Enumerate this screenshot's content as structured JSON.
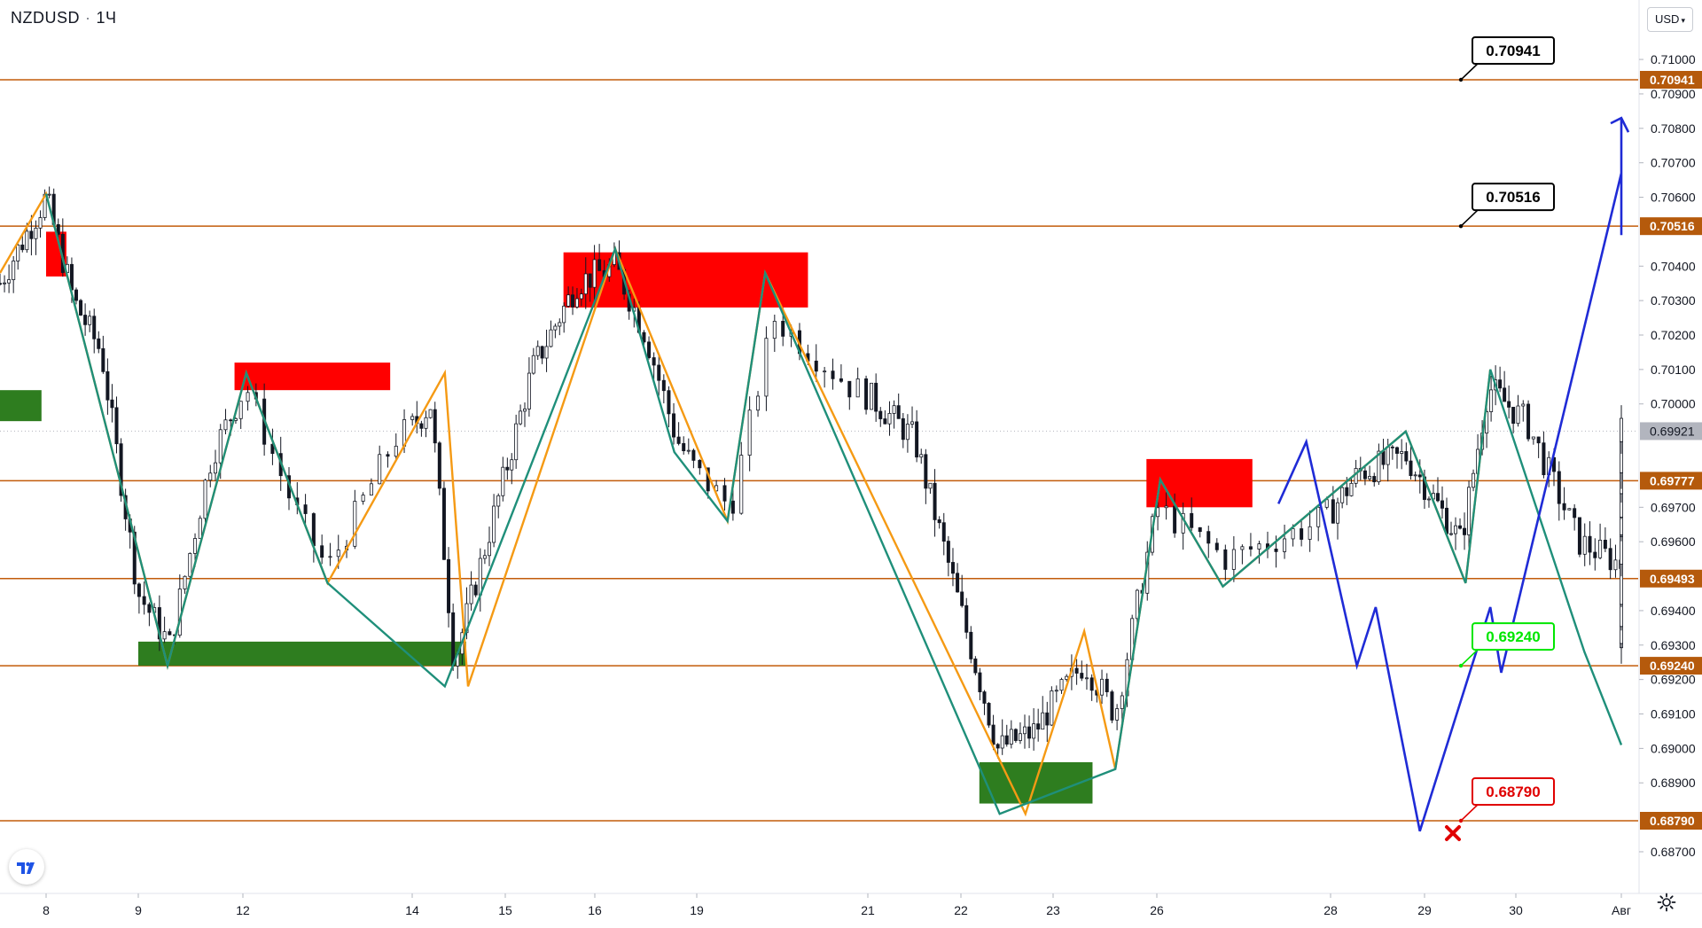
{
  "header": {
    "symbol": "NZDUSD",
    "interval": "1Ч"
  },
  "currency": {
    "label": "USD"
  },
  "chart_data": {
    "type": "candlestick",
    "symbol": "NZDUSD",
    "y_ticks": [
      "0.71000",
      "0.70900",
      "0.70800",
      "0.70700",
      "0.70600",
      "0.70400",
      "0.70300",
      "0.70200",
      "0.70100",
      "0.70000",
      "0.69700",
      "0.69600",
      "0.69400",
      "0.69300",
      "0.69200",
      "0.69100",
      "0.69000",
      "0.68900",
      "0.68700"
    ],
    "y_tick_values": [
      0.71,
      0.709,
      0.708,
      0.707,
      0.706,
      0.704,
      0.703,
      0.702,
      0.701,
      0.7,
      0.697,
      0.696,
      0.694,
      0.693,
      0.692,
      0.691,
      0.69,
      0.689,
      0.687
    ],
    "x_ticks": [
      "8",
      "9",
      "12",
      "14",
      "15",
      "16",
      "19",
      "21",
      "22",
      "23",
      "26",
      "28",
      "29",
      "30",
      "Авг"
    ],
    "current_price": "0.69921",
    "current_price_value": 0.69921,
    "levels": [
      {
        "label": "0.70941",
        "value": 0.70941
      },
      {
        "label": "0.70516",
        "value": 0.70516
      },
      {
        "label": "0.69777",
        "value": 0.69777
      },
      {
        "label": "0.69493",
        "value": 0.69493
      },
      {
        "label": "0.69240",
        "value": 0.6924
      },
      {
        "label": "0.68790",
        "value": 0.6879
      }
    ],
    "callouts": [
      {
        "label": "0.70941",
        "value": 0.70941,
        "color": "#000000"
      },
      {
        "label": "0.70516",
        "value": 0.70516,
        "color": "#000000"
      },
      {
        "label": "0.69240",
        "value": 0.6924,
        "color": "#00e600"
      },
      {
        "label": "0.68790",
        "value": 0.6879,
        "color": "#e00000"
      }
    ],
    "zones": [
      {
        "type": "supply",
        "x_from": 0.0,
        "x_to": 0.22,
        "y_from": 0.7037,
        "y_to": 0.705
      },
      {
        "type": "demand",
        "x_from": -0.5,
        "x_to": -0.05,
        "y_from": 0.6995,
        "y_to": 0.7004
      },
      {
        "type": "supply",
        "x_from": 1.92,
        "x_to": 2.87,
        "y_from": 0.7004,
        "y_to": 0.7012
      },
      {
        "type": "demand",
        "x_from": 1.0,
        "x_to": 3.58,
        "y_from": 0.6924,
        "y_to": 0.6931
      },
      {
        "type": "supply",
        "x_from": 4.65,
        "x_to": 6.65,
        "y_from": 0.7028,
        "y_to": 0.7044
      },
      {
        "type": "demand",
        "x_from": 8.2,
        "x_to": 9.38,
        "y_from": 0.6884,
        "y_to": 0.6896
      },
      {
        "type": "supply",
        "x_from": 9.9,
        "x_to": 10.55,
        "y_from": 0.697,
        "y_to": 0.6984
      }
    ],
    "zigzag_teal": [
      [
        0,
        0.7061
      ],
      [
        1.28,
        0.6924
      ],
      [
        2.02,
        0.7009
      ],
      [
        2.5,
        0.6948
      ],
      [
        3.35,
        0.6918
      ],
      [
        5.2,
        0.7045
      ],
      [
        5.78,
        0.6986
      ],
      [
        6.18,
        0.6966
      ],
      [
        6.4,
        0.7038
      ],
      [
        8.42,
        0.6881
      ],
      [
        9.6,
        0.6894
      ],
      [
        10.02,
        0.6978
      ],
      [
        10.38,
        0.6947
      ],
      [
        11.8,
        0.6992
      ],
      [
        12.45,
        0.6948
      ],
      [
        12.72,
        0.701
      ],
      [
        13.65,
        0.6928
      ],
      [
        14.92,
        0.6901
      ]
    ],
    "zigzag_orange": [
      [
        -0.5,
        0.7038
      ],
      [
        0,
        0.7061
      ],
      [
        1.28,
        0.6924
      ],
      [
        2.02,
        0.7009
      ],
      [
        2.5,
        0.6948
      ],
      [
        3.35,
        0.7009
      ],
      [
        3.6,
        0.6918
      ],
      [
        5.2,
        0.7045
      ],
      [
        6.18,
        0.6966
      ],
      [
        6.4,
        0.7038
      ],
      [
        8.7,
        0.6881
      ],
      [
        9.3,
        0.6934
      ],
      [
        9.6,
        0.6894
      ],
      [
        10.02,
        0.6978
      ],
      [
        10.38,
        0.6947
      ],
      [
        11.8,
        0.6992
      ],
      [
        12.45,
        0.6948
      ],
      [
        12.72,
        0.701
      ]
    ],
    "projection": [
      [
        10.7,
        0.6971
      ],
      [
        10.86,
        0.6989
      ],
      [
        11.28,
        0.6924
      ],
      [
        11.48,
        0.6941
      ],
      [
        11.95,
        0.6876
      ],
      [
        12.72,
        0.6941
      ],
      [
        12.84,
        0.6922
      ],
      [
        14.78,
        0.7067
      ],
      [
        14.92,
        0.7049
      ],
      [
        15.28,
        0.7083
      ],
      [
        15.3,
        0.708
      ]
    ],
    "price_path": [
      [
        -0.5,
        0.7035
      ],
      [
        0,
        0.706
      ],
      [
        0.3,
        0.703
      ],
      [
        0.6,
        0.7015
      ],
      [
        1.0,
        0.6945
      ],
      [
        1.3,
        0.693
      ],
      [
        1.7,
        0.6985
      ],
      [
        2.02,
        0.7005
      ],
      [
        2.3,
        0.697
      ],
      [
        2.5,
        0.6952
      ],
      [
        2.9,
        0.699
      ],
      [
        3.2,
        0.7
      ],
      [
        3.45,
        0.6925
      ],
      [
        3.7,
        0.695
      ],
      [
        4.3,
        0.701
      ],
      [
        4.8,
        0.7035
      ],
      [
        5.2,
        0.704
      ],
      [
        5.5,
        0.702
      ],
      [
        5.8,
        0.699
      ],
      [
        6.2,
        0.697
      ],
      [
        6.45,
        0.7025
      ],
      [
        6.9,
        0.7005
      ],
      [
        7.5,
        0.699
      ],
      [
        8.0,
        0.694
      ],
      [
        8.4,
        0.69
      ],
      [
        8.8,
        0.6905
      ],
      [
        9.3,
        0.6925
      ],
      [
        9.6,
        0.691
      ],
      [
        10.0,
        0.697
      ],
      [
        10.4,
        0.6955
      ],
      [
        10.9,
        0.6965
      ],
      [
        11.3,
        0.698
      ],
      [
        11.8,
        0.6985
      ],
      [
        12.4,
        0.696
      ],
      [
        12.7,
        0.7005
      ],
      [
        13.1,
        0.6995
      ],
      [
        13.6,
        0.696
      ],
      [
        14.2,
        0.695
      ],
      [
        14.6,
        0.6945
      ],
      [
        14.9,
        0.6925
      ],
      [
        15.1,
        0.696
      ],
      [
        15.35,
        0.697
      ],
      [
        15.55,
        0.6995
      ]
    ]
  }
}
